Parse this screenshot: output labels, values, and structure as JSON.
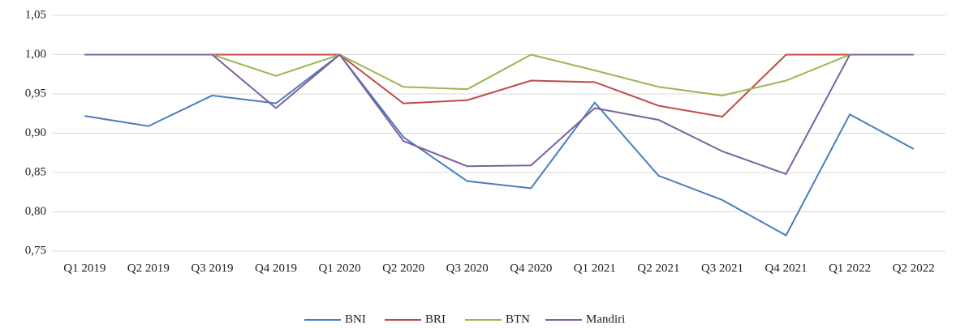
{
  "chart_data": {
    "type": "line",
    "categories": [
      "Q1 2019",
      "Q2 2019",
      "Q3 2019",
      "Q4 2019",
      "Q1 2020",
      "Q2 2020",
      "Q3 2020",
      "Q4 2020",
      "Q1 2021",
      "Q2 2021",
      "Q3 2021",
      "Q4 2021",
      "Q1 2022",
      "Q2 2022"
    ],
    "series": [
      {
        "name": "BNI",
        "color": "#4a7ebb",
        "values": [
          0.922,
          0.909,
          0.948,
          0.938,
          1.0,
          0.895,
          0.839,
          0.83,
          0.939,
          0.846,
          0.815,
          0.77,
          0.924,
          0.88
        ]
      },
      {
        "name": "BRI",
        "color": "#be4b48",
        "values": [
          1.0,
          1.0,
          1.0,
          1.0,
          1.0,
          0.938,
          0.942,
          0.967,
          0.965,
          0.935,
          0.921,
          1.0,
          1.0,
          1.0
        ]
      },
      {
        "name": "BTN",
        "color": "#98b954",
        "values": [
          1.0,
          1.0,
          1.0,
          0.973,
          1.0,
          0.959,
          0.956,
          1.0,
          0.98,
          0.959,
          0.948,
          0.967,
          1.0,
          1.0
        ]
      },
      {
        "name": "Mandiri",
        "color": "#7d60a0",
        "values": [
          1.0,
          1.0,
          1.0,
          0.932,
          1.0,
          0.89,
          0.858,
          0.859,
          0.932,
          0.917,
          0.877,
          0.848,
          1.0,
          1.0
        ]
      }
    ],
    "ylim": [
      0.75,
      1.05
    ],
    "yticks": [
      {
        "value": 0.75,
        "label": "0,75"
      },
      {
        "value": 0.8,
        "label": "0,80"
      },
      {
        "value": 0.85,
        "label": "0,85"
      },
      {
        "value": 0.9,
        "label": "0,90"
      },
      {
        "value": 0.95,
        "label": "0,95"
      },
      {
        "value": 1.0,
        "label": "1,00"
      },
      {
        "value": 1.05,
        "label": "1,05"
      }
    ],
    "grid": true,
    "legend": "bottom"
  }
}
